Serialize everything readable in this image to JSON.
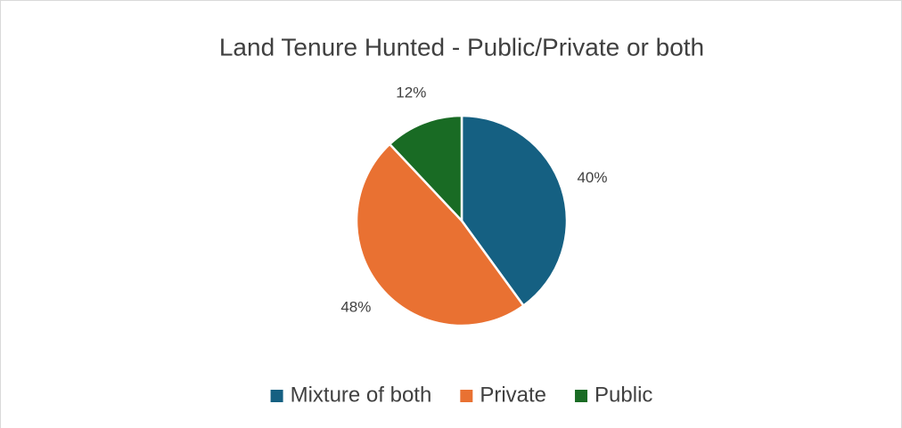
{
  "chart_data": {
    "type": "pie",
    "title": "Land Tenure Hunted - Public/Private or both",
    "categories": [
      "Mixture of both",
      "Private",
      "Public"
    ],
    "values": [
      40,
      48,
      12
    ],
    "value_labels": [
      "40%",
      "48%",
      "12%"
    ],
    "colors": [
      "#156082",
      "#e97132",
      "#196b24"
    ],
    "legend": "bottom"
  }
}
